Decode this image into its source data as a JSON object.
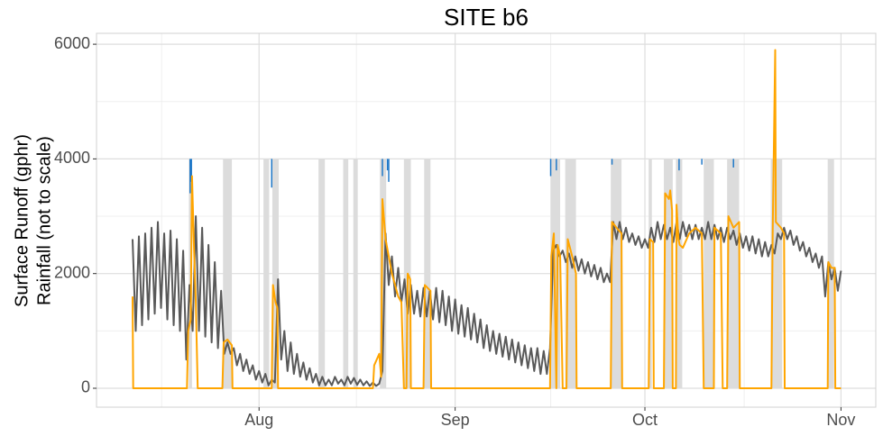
{
  "chart_data": {
    "type": "line",
    "title": "SITE b6",
    "y_label": [
      "Surface Runoff (gphr)",
      "Rainfall (not to scale)"
    ],
    "xlim": [
      -5.7,
      117.5
    ],
    "ylim": [
      -330,
      6190
    ],
    "xticks": [
      {
        "value": 20,
        "label": "Aug"
      },
      {
        "value": 51,
        "label": "Sep"
      },
      {
        "value": 81,
        "label": "Oct"
      },
      {
        "value": 112,
        "label": "Nov"
      }
    ],
    "minor_xticks": [
      4.6,
      35.4,
      66.1,
      96.7
    ],
    "yticks": [
      0,
      2000,
      4000,
      6000
    ],
    "minor_yticks": [
      1000,
      3000,
      5000
    ],
    "grid": true,
    "shade_color": "#dcdcdc",
    "shade_range": [
      0,
      4000
    ],
    "shaded_periods": [
      [
        8.9,
        9.4
      ],
      [
        14.3,
        15.7
      ],
      [
        20.7,
        21.6
      ],
      [
        22.1,
        23.1
      ],
      [
        29.4,
        30.4
      ],
      [
        33.3,
        34.1
      ],
      [
        34.9,
        35.6
      ],
      [
        39.1,
        40.1
      ],
      [
        42.9,
        44
      ],
      [
        46.1,
        47.1
      ],
      [
        66.1,
        67.6
      ],
      [
        68.4,
        70.1
      ],
      [
        75.6,
        77.3
      ],
      [
        81.6,
        82.1
      ],
      [
        84,
        85.4
      ],
      [
        85.9,
        86.9
      ],
      [
        90.3,
        91.9
      ],
      [
        94,
        95.9
      ],
      [
        100.9,
        102.7
      ],
      [
        109.9,
        110.9
      ]
    ],
    "rain": {
      "color": "#1f78c8",
      "top": 4000,
      "x": [
        9.1,
        9.3,
        22.0,
        39.5,
        40.3,
        40.5,
        66.1,
        67,
        75.8,
        86.4,
        90,
        95
      ],
      "values": [
        3400,
        3600,
        3500,
        3700,
        3800,
        3600,
        3700,
        3800,
        3900,
        3800,
        3900,
        3850
      ]
    },
    "series": [
      {
        "color": "#595959",
        "x": [
          0,
          0.5,
          1,
          1.5,
          2,
          2.5,
          3,
          3.5,
          4,
          4.5,
          5,
          5.5,
          6,
          6.5,
          7,
          7.5,
          8,
          8.5,
          9,
          9.5,
          10,
          10.5,
          11,
          11.5,
          12,
          12.5,
          13,
          13.5,
          14,
          14.5,
          15,
          15.5,
          16,
          16.5,
          17,
          17.5,
          18,
          18.5,
          19,
          19.5,
          20,
          20.5,
          21,
          21.5,
          22,
          22.5,
          23,
          23.5,
          24,
          24.5,
          25,
          25.5,
          26,
          26.5,
          27,
          27.5,
          28,
          28.5,
          29,
          29.5,
          30,
          30.5,
          31,
          31.5,
          32,
          32.5,
          33,
          33.5,
          34,
          34.5,
          35,
          35.5,
          36,
          36.5,
          37,
          37.5,
          38,
          38.5,
          39,
          39.5,
          40,
          40.5,
          41,
          41.5,
          42,
          42.5,
          43,
          43.5,
          44,
          44.5,
          45,
          45.5,
          46,
          46.5,
          47,
          47.5,
          48,
          48.5,
          49,
          49.5,
          50,
          50.5,
          51,
          51.5,
          52,
          52.5,
          53,
          53.5,
          54,
          54.5,
          55,
          55.5,
          56,
          56.5,
          57,
          57.5,
          58,
          58.5,
          59,
          59.5,
          60,
          60.5,
          61,
          61.5,
          62,
          62.5,
          63,
          63.5,
          64,
          64.5,
          65,
          65.5,
          66,
          66.5,
          67,
          67.5,
          68,
          68.5,
          69,
          69.5,
          70,
          70.5,
          71,
          71.5,
          72,
          72.5,
          73,
          73.5,
          74,
          74.5,
          75,
          75.5,
          76,
          76.5,
          77,
          77.5,
          78,
          78.5,
          79,
          79.5,
          80,
          80.5,
          81,
          81.5,
          82,
          82.5,
          83,
          83.5,
          84,
          84.5,
          85,
          85.5,
          86,
          86.5,
          87,
          87.5,
          88,
          88.5,
          89,
          89.5,
          90,
          90.5,
          91,
          91.5,
          92,
          92.5,
          93,
          93.5,
          94,
          94.5,
          95,
          95.5,
          96,
          96.5,
          97,
          97.5,
          98,
          98.5,
          99,
          99.5,
          100,
          100.5,
          101,
          101.5,
          102,
          102.5,
          103,
          103.5,
          104,
          104.5,
          105,
          105.5,
          106,
          106.5,
          107,
          107.5,
          108,
          108.5,
          109,
          109.5,
          110,
          110.5,
          111,
          111.5,
          112
        ],
        "values": [
          2600,
          1000,
          2650,
          1100,
          2700,
          1200,
          2800,
          1300,
          2900,
          1400,
          2700,
          1200,
          2750,
          1100,
          2600,
          1000,
          2400,
          500,
          1800,
          1000,
          3000,
          1000,
          2800,
          900,
          2500,
          800,
          2200,
          700,
          1700,
          600,
          800,
          600,
          700,
          400,
          600,
          300,
          500,
          250,
          400,
          150,
          300,
          100,
          250,
          50,
          150,
          100,
          1900,
          500,
          1000,
          300,
          800,
          250,
          600,
          200,
          450,
          150,
          350,
          100,
          250,
          50,
          200,
          50,
          150,
          50,
          200,
          80,
          150,
          50,
          200,
          80,
          180,
          60,
          150,
          50,
          120,
          40,
          100,
          40,
          80,
          300,
          2700,
          1800,
          2300,
          1600,
          2100,
          1500,
          1900,
          1300,
          1800,
          1300,
          1700,
          1250,
          1750,
          1250,
          1700,
          1200,
          1750,
          1150,
          1700,
          1100,
          1600,
          1000,
          1550,
          950,
          1450,
          900,
          1400,
          850,
          1300,
          800,
          1200,
          700,
          1100,
          650,
          1000,
          600,
          950,
          550,
          900,
          500,
          850,
          450,
          800,
          400,
          750,
          350,
          700,
          300,
          700,
          250,
          650,
          250,
          700,
          2400,
          2500,
          2300,
          2400,
          2200,
          2350,
          2100,
          2300,
          2050,
          2250,
          2000,
          2200,
          1950,
          2150,
          1900,
          2100,
          1850,
          2000,
          1850,
          2900,
          2600,
          2900,
          2600,
          2800,
          2550,
          2700,
          2500,
          2650,
          2450,
          2600,
          2450,
          2800,
          2550,
          2900,
          2600,
          2850,
          2600,
          2800,
          2550,
          2900,
          2600,
          2900,
          2650,
          2850,
          2600,
          2850,
          2600,
          2800,
          2600,
          2900,
          2600,
          2850,
          2600,
          2800,
          2550,
          2800,
          2600,
          2750,
          2500,
          2700,
          2450,
          2650,
          2400,
          2650,
          2350,
          2600,
          2300,
          2550,
          2300,
          2500,
          2350,
          2700,
          2600,
          2800,
          2600,
          2750,
          2500,
          2650,
          2400,
          2550,
          2300,
          2450,
          2200,
          2350,
          2100,
          2300,
          1600,
          2200,
          1900,
          2100,
          1700,
          2050
        ]
      },
      {
        "color": "#ffa500",
        "x": [
          0,
          0.1,
          8.6,
          8.8,
          9.2,
          9.4,
          9.7,
          10,
          10.3,
          14.2,
          14.4,
          15,
          15.7,
          15.8,
          22.0,
          22.2,
          22.6,
          22.9,
          23,
          38,
          38.2,
          39,
          39.3,
          39.5,
          40,
          40.5,
          41,
          41.5,
          42,
          42.5,
          42.9,
          43.3,
          43.5,
          43.9,
          44,
          46,
          46.2,
          47.1,
          47.2,
          66,
          66.2,
          66.6,
          67,
          67.2,
          67.6,
          68,
          68.6,
          68.8,
          69.5,
          70.1,
          70.2,
          75.6,
          75.8,
          76.5,
          77.3,
          77.4,
          81.6,
          81.8,
          82.3,
          82.4,
          84,
          84.2,
          84.8,
          85,
          85.3,
          85.4,
          85.9,
          86,
          86.3,
          86.5,
          87,
          88,
          89,
          90,
          90.3,
          91.9,
          92,
          93,
          93.3,
          94,
          94.2,
          95,
          95.9,
          96,
          101,
          101.2,
          101.6,
          101.7,
          102.5,
          103,
          103.1,
          109.9,
          110,
          110.5,
          111,
          111.1,
          112
        ],
        "values": [
          1600,
          0,
          0,
          1000,
          1200,
          3700,
          2500,
          1500,
          0,
          0,
          800,
          850,
          750,
          0,
          0,
          1800,
          1500,
          1400,
          0,
          0,
          400,
          600,
          200,
          3300,
          2600,
          2300,
          2000,
          1800,
          1600,
          1500,
          0,
          0,
          2000,
          1900,
          0,
          0,
          1800,
          1700,
          0,
          0,
          2300,
          2700,
          0,
          2500,
          2300,
          0,
          0,
          2600,
          2300,
          2000,
          0,
          0,
          2900,
          2800,
          2700,
          0,
          0,
          2600,
          2550,
          0,
          0,
          3400,
          3300,
          3450,
          3100,
          0,
          0,
          3200,
          2600,
          2500,
          2450,
          2700,
          2800,
          2700,
          0,
          0,
          2800,
          2700,
          0,
          0,
          3000,
          2800,
          2900,
          0,
          0,
          2700,
          5900,
          2900,
          2800,
          2700,
          0,
          0,
          2200,
          2100,
          2100,
          0,
          0
        ]
      }
    ]
  }
}
